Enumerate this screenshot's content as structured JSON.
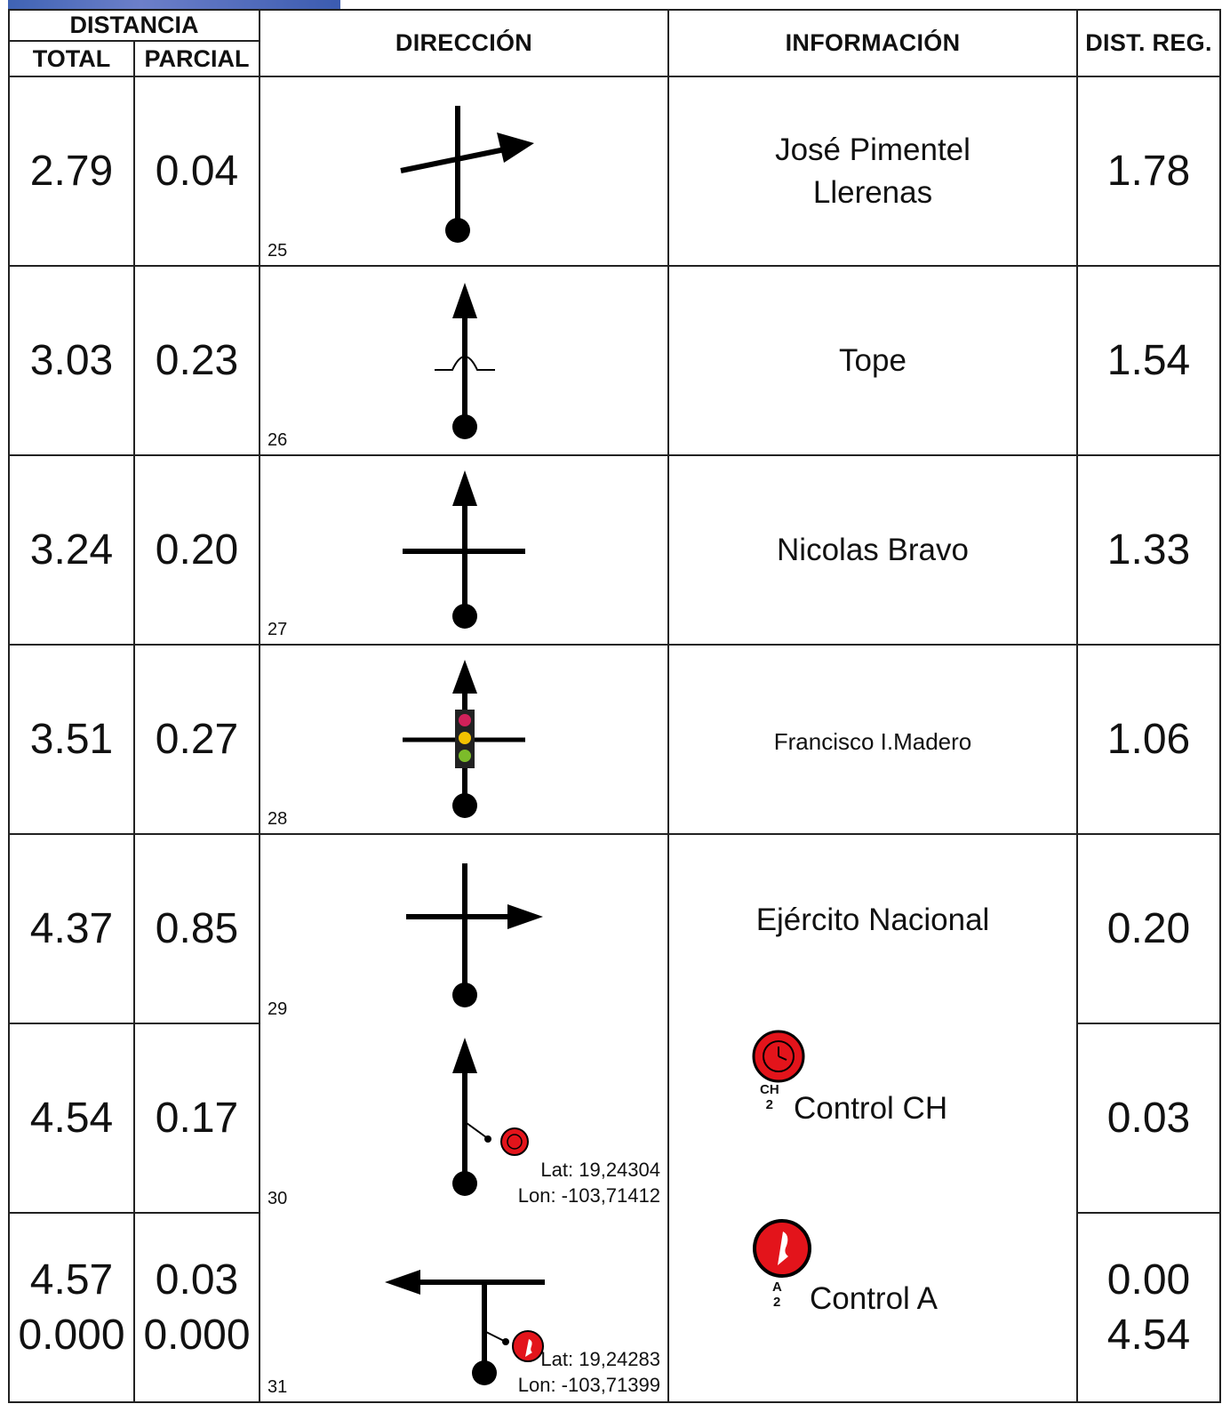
{
  "header": {
    "distancia": "DISTANCIA",
    "total": "TOTAL",
    "parcial": "PARCIAL",
    "direccion": "DIRECCIÓN",
    "informacion": "INFORMACIÓN",
    "dist_reg": "DIST. REG."
  },
  "rows": [
    {
      "total": "2.79",
      "parcial": "0.04",
      "index": "25",
      "info": "José Pimentel Llerenas",
      "dist_reg": "1.78",
      "icon": "crossing-right-arrow-icon"
    },
    {
      "total": "3.03",
      "parcial": "0.23",
      "index": "26",
      "info": "Tope",
      "dist_reg": "1.54",
      "icon": "speed-bump-straight-icon"
    },
    {
      "total": "3.24",
      "parcial": "0.20",
      "index": "27",
      "info": "Nicolas Bravo",
      "dist_reg": "1.33",
      "icon": "intersection-straight-icon"
    },
    {
      "total": "3.51",
      "parcial": "0.27",
      "index": "28",
      "info": "Francisco I.Madero",
      "dist_reg": "1.06",
      "icon": "traffic-light-straight-icon"
    },
    {
      "total": "4.37",
      "parcial": "0.85",
      "index": "29",
      "info": "Ejército Nacional",
      "dist_reg": "0.20",
      "icon": "turn-right-icon"
    },
    {
      "total": "4.54",
      "parcial": "0.17",
      "index": "30",
      "info": "Control CH",
      "badge": "CH 2",
      "dist_reg": "0.03",
      "icon": "time-control-straight-icon",
      "lat": "Lat: 19,24304",
      "lon": "Lon: -103,71412"
    },
    {
      "total": "4.57",
      "total2": "0.000",
      "parcial": "0.03",
      "parcial2": "0.000",
      "index": "31",
      "info": "Control A",
      "badge": "A 2",
      "dist_reg": "0.00",
      "dist_reg2": "4.54",
      "icon": "arrival-control-turn-left-icon",
      "lat": "Lat: 19,24283",
      "lon": "Lon: -103,71399"
    }
  ],
  "colors": {
    "control_red": "#e3141b",
    "traffic_red": "#d0215a",
    "traffic_yellow": "#f2c100",
    "traffic_green": "#7cbc2a"
  }
}
